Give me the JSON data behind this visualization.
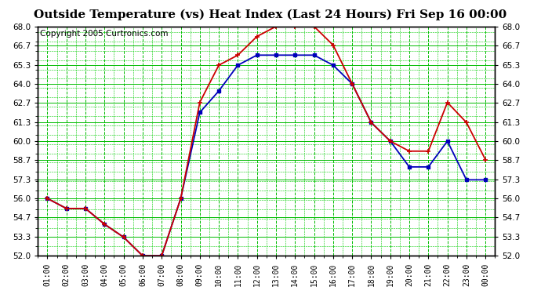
{
  "title": "Outside Temperature (vs) Heat Index (Last 24 Hours) Fri Sep 16 00:00",
  "copyright": "Copyright 2005 Curtronics.com",
  "x_labels": [
    "01:00",
    "02:00",
    "03:00",
    "04:00",
    "05:00",
    "06:00",
    "07:00",
    "08:00",
    "09:00",
    "10:00",
    "11:00",
    "12:00",
    "13:00",
    "14:00",
    "15:00",
    "16:00",
    "17:00",
    "18:00",
    "19:00",
    "20:00",
    "21:00",
    "22:00",
    "23:00",
    "00:00"
  ],
  "blue_data": [
    56.0,
    55.3,
    55.3,
    54.2,
    53.3,
    52.0,
    52.0,
    56.0,
    62.0,
    63.5,
    65.3,
    66.0,
    66.0,
    66.0,
    66.0,
    65.3,
    64.0,
    61.3,
    60.0,
    58.2,
    58.2,
    60.0,
    57.3,
    57.3
  ],
  "red_data": [
    56.0,
    55.3,
    55.3,
    54.2,
    53.3,
    52.0,
    52.0,
    56.0,
    62.7,
    65.3,
    66.0,
    67.3,
    68.0,
    68.0,
    68.0,
    66.7,
    64.0,
    61.3,
    60.0,
    59.3,
    59.3,
    62.7,
    61.3,
    58.7
  ],
  "ylim": [
    52.0,
    68.0
  ],
  "yticks": [
    52.0,
    53.3,
    54.7,
    56.0,
    57.3,
    58.7,
    60.0,
    61.3,
    62.7,
    64.0,
    65.3,
    66.7,
    68.0
  ],
  "bg_color": "#ffffff",
  "plot_bg": "#ffffff",
  "grid_color": "#00bb00",
  "grid_color_minor": "#00cc00",
  "blue_color": "#0000bb",
  "red_color": "#cc0000",
  "title_fontsize": 11,
  "copyright_fontsize": 7.5
}
